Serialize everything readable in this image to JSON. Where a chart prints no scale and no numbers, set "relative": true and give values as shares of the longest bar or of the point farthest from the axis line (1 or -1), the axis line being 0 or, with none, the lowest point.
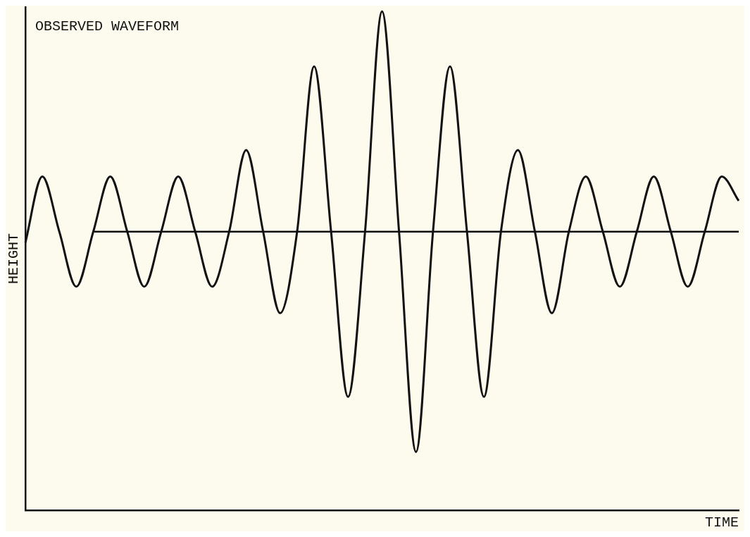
{
  "chart_data": {
    "type": "line",
    "title": "OBSERVED WAVEFORM",
    "xlabel": "TIME",
    "ylabel": "HEIGHT",
    "relative": true,
    "categories": [
      null,
      null,
      null,
      null,
      null,
      null,
      null,
      null,
      null,
      null,
      null,
      null,
      null,
      null,
      null,
      null,
      null,
      null,
      null,
      null,
      null,
      null,
      null,
      null,
      null,
      null,
      null,
      null,
      null,
      null,
      null,
      null,
      null,
      null,
      null,
      null,
      null,
      null,
      null,
      null,
      null,
      null,
      null
    ],
    "series": [
      {
        "color": "#111111",
        "values": [
          -0.05,
          0.25,
          0,
          -0.25,
          0,
          0.25,
          0,
          -0.25,
          0,
          0.25,
          0,
          -0.25,
          0,
          0.37,
          0,
          -0.37,
          0,
          0.75,
          0,
          -0.75,
          0,
          1,
          0,
          -1,
          0,
          0.75,
          0,
          -0.75,
          0,
          0.37,
          0,
          -0.37,
          0,
          0.25,
          0,
          -0.25,
          0,
          0.25,
          0,
          -0.25,
          0,
          0.25,
          0.14
        ]
      }
    ],
    "ref_lines": [
      {
        "axis": "y",
        "value": 0,
        "color": "#111111"
      }
    ],
    "grid": false,
    "legend": false,
    "marker": "none",
    "line_style": "solid"
  }
}
